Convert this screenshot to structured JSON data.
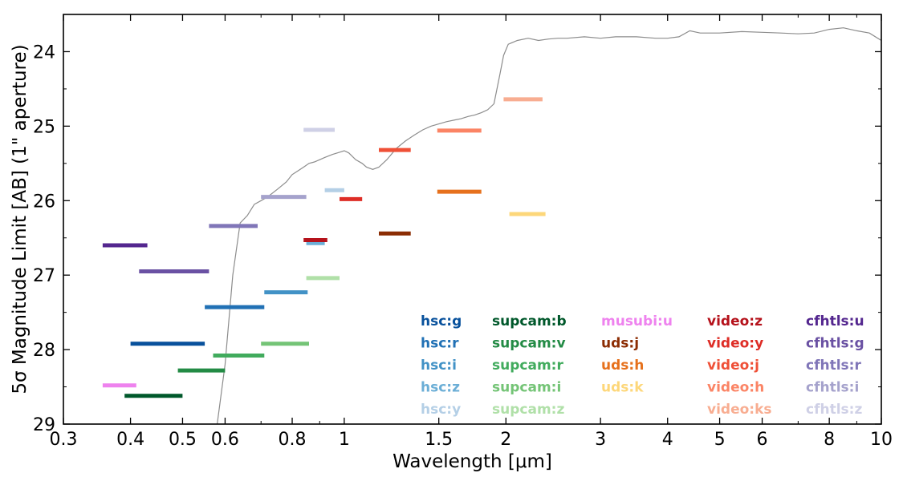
{
  "chart_data": {
    "type": "line",
    "xlabel": "Wavelength [$\\mu$m]",
    "ylabel": "5$\\sigma$ Magnitude Limit [AB] (1\" aperture)",
    "xscale": "log",
    "xlim": [
      0.3,
      10
    ],
    "ylim": [
      29,
      23.5
    ],
    "y_inverted": true,
    "grid": false,
    "xticks": [
      0.3,
      0.4,
      0.5,
      0.6,
      0.8,
      1,
      1.5,
      2,
      3,
      4,
      5,
      6,
      8,
      10
    ],
    "xtick_labels": [
      "0.3",
      "0.4",
      "0.5",
      "0.6",
      "0.8",
      "1",
      "1.5",
      "2",
      "3",
      "4",
      "5",
      "6",
      "8",
      "10"
    ],
    "yticks": [
      24,
      25,
      26,
      27,
      28,
      29
    ],
    "ytick_labels": [
      "24",
      "25",
      "26",
      "27",
      "28",
      "29"
    ],
    "spectrum": {
      "color": "#8c8c8c",
      "x": [
        0.58,
        0.6,
        0.62,
        0.64,
        0.66,
        0.68,
        0.7,
        0.72,
        0.75,
        0.78,
        0.8,
        0.82,
        0.84,
        0.86,
        0.88,
        0.9,
        0.92,
        0.95,
        0.98,
        1.0,
        1.02,
        1.05,
        1.08,
        1.1,
        1.13,
        1.16,
        1.2,
        1.25,
        1.3,
        1.35,
        1.4,
        1.45,
        1.5,
        1.55,
        1.6,
        1.65,
        1.7,
        1.75,
        1.8,
        1.85,
        1.9,
        1.95,
        1.98,
        2.02,
        2.1,
        2.2,
        2.3,
        2.4,
        2.5,
        2.6,
        2.8,
        3.0,
        3.2,
        3.5,
        3.8,
        4.0,
        4.2,
        4.4,
        4.6,
        5.0,
        5.5,
        6.0,
        6.5,
        7.0,
        7.5,
        8.0,
        8.5,
        9.0,
        9.5,
        10.0
      ],
      "y": [
        29.0,
        28.2,
        27.0,
        26.3,
        26.2,
        26.05,
        26.0,
        25.95,
        25.85,
        25.75,
        25.65,
        25.6,
        25.55,
        25.5,
        25.48,
        25.45,
        25.42,
        25.38,
        25.35,
        25.33,
        25.36,
        25.45,
        25.5,
        25.55,
        25.58,
        25.55,
        25.45,
        25.3,
        25.2,
        25.12,
        25.05,
        25.0,
        24.97,
        24.94,
        24.92,
        24.9,
        24.87,
        24.85,
        24.82,
        24.78,
        24.7,
        24.3,
        24.05,
        23.9,
        23.85,
        23.82,
        23.85,
        23.83,
        23.82,
        23.82,
        23.8,
        23.82,
        23.8,
        23.8,
        23.82,
        23.82,
        23.8,
        23.72,
        23.75,
        23.75,
        23.73,
        23.74,
        23.75,
        23.76,
        23.75,
        23.7,
        23.68,
        23.72,
        23.75,
        23.85
      ]
    },
    "series": [
      {
        "name": "hsc:g",
        "color": "#08519c",
        "x": [
          0.4,
          0.55
        ],
        "y": 27.92
      },
      {
        "name": "hsc:r",
        "color": "#2171b5",
        "x": [
          0.55,
          0.71
        ],
        "y": 27.43
      },
      {
        "name": "hsc:i",
        "color": "#4292c6",
        "x": [
          0.71,
          0.855
        ],
        "y": 27.23
      },
      {
        "name": "hsc:z",
        "color": "#6baed6",
        "x": [
          0.85,
          0.92
        ],
        "y": 26.57
      },
      {
        "name": "hsc:y",
        "color": "#b4cfe6",
        "x": [
          0.92,
          1.0
        ],
        "y": 25.86
      },
      {
        "name": "supcam:b",
        "color": "#00582b",
        "x": [
          0.39,
          0.5
        ],
        "y": 28.62
      },
      {
        "name": "supcam:v",
        "color": "#238b45",
        "x": [
          0.49,
          0.6
        ],
        "y": 28.28
      },
      {
        "name": "supcam:r",
        "color": "#41ab5d",
        "x": [
          0.57,
          0.71
        ],
        "y": 28.08
      },
      {
        "name": "supcam:i",
        "color": "#74c476",
        "x": [
          0.7,
          0.86
        ],
        "y": 27.92
      },
      {
        "name": "supcam:z",
        "color": "#b0e0a8",
        "x": [
          0.85,
          0.98
        ],
        "y": 27.04
      },
      {
        "name": "musubi:u",
        "color": "#ee82ee",
        "x": [
          0.355,
          0.41
        ],
        "y": 28.48
      },
      {
        "name": "uds:j",
        "color": "#8c2d04",
        "x": [
          1.16,
          1.33
        ],
        "y": 26.44
      },
      {
        "name": "uds:h",
        "color": "#e6711d",
        "x": [
          1.49,
          1.8
        ],
        "y": 25.88
      },
      {
        "name": "uds:k",
        "color": "#fdd77a",
        "x": [
          2.03,
          2.37
        ],
        "y": 26.18
      },
      {
        "name": "video:z",
        "color": "#b5121b",
        "x": [
          0.84,
          0.93
        ],
        "y": 26.53
      },
      {
        "name": "video:y",
        "color": "#de2d26",
        "x": [
          0.98,
          1.08
        ],
        "y": 25.98
      },
      {
        "name": "video:j",
        "color": "#ef5037",
        "x": [
          1.16,
          1.33
        ],
        "y": 25.32
      },
      {
        "name": "video:h",
        "color": "#fb8465",
        "x": [
          1.49,
          1.8
        ],
        "y": 25.06
      },
      {
        "name": "video:ks",
        "color": "#f8ad91",
        "x": [
          1.98,
          2.34
        ],
        "y": 24.64
      },
      {
        "name": "cfhtls:u",
        "color": "#54278f",
        "x": [
          0.355,
          0.43
        ],
        "y": 26.6
      },
      {
        "name": "cfhtls:g",
        "color": "#6a51a3",
        "x": [
          0.415,
          0.56
        ],
        "y": 26.95
      },
      {
        "name": "cfhtls:r",
        "color": "#8076b8",
        "x": [
          0.56,
          0.69
        ],
        "y": 26.34
      },
      {
        "name": "cfhtls:i",
        "color": "#a5a2cc",
        "x": [
          0.7,
          0.85
        ],
        "y": 25.95
      },
      {
        "name": "cfhtls:z",
        "color": "#cfd0e6",
        "x": [
          0.84,
          0.96
        ],
        "y": 25.05
      }
    ],
    "legend": {
      "placement": "lower-right",
      "columns": [
        [
          "hsc:g",
          "hsc:r",
          "hsc:i",
          "hsc:z",
          "hsc:y"
        ],
        [
          "supcam:b",
          "supcam:v",
          "supcam:r",
          "supcam:i",
          "supcam:z"
        ],
        [
          "musubi:u",
          "uds:j",
          "uds:h",
          "uds:k"
        ],
        [
          "video:z",
          "video:y",
          "video:j",
          "video:h",
          "video:ks"
        ],
        [
          "cfhtls:u",
          "cfhtls:g",
          "cfhtls:r",
          "cfhtls:i",
          "cfhtls:z"
        ]
      ]
    }
  }
}
